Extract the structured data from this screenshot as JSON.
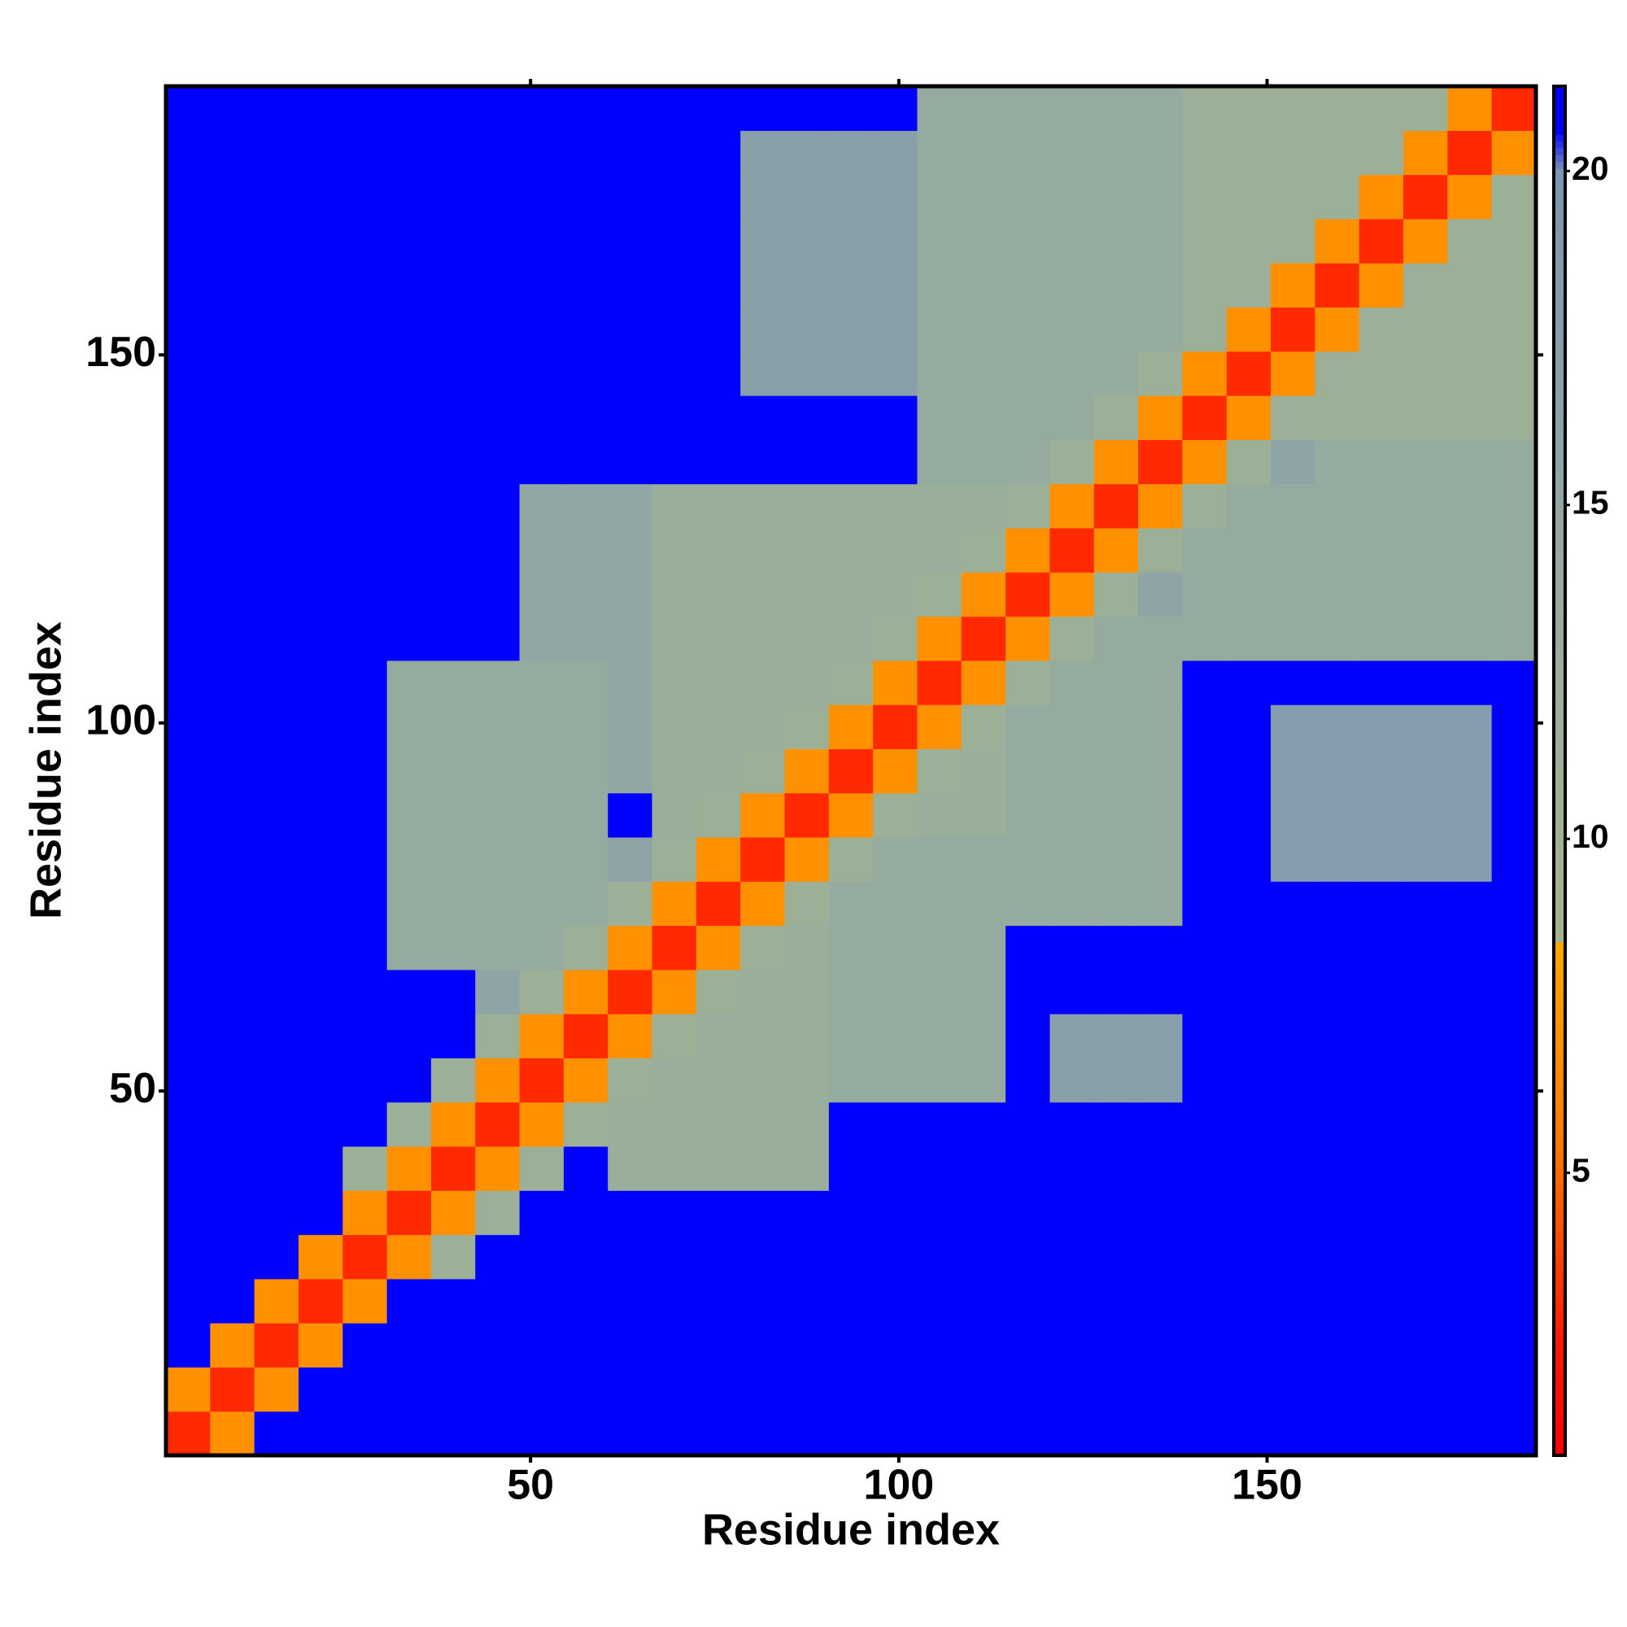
{
  "chart_data": {
    "type": "heatmap",
    "xlabel": "Residue index",
    "ylabel": "Residue index",
    "xlim": [
      0.5,
      186.5
    ],
    "ylim": [
      0.5,
      186.5
    ],
    "xticks": [
      50,
      100,
      150
    ],
    "yticks": [
      50,
      100,
      150
    ],
    "zlim": [
      0.77,
      21.27
    ],
    "colorbar_ticks": [
      5,
      10,
      15,
      20
    ],
    "colorscale": [
      [
        0.77,
        "#ff0000"
      ],
      [
        2.5,
        "#ff1a00"
      ],
      [
        5.5,
        "#ff7a00"
      ],
      [
        8.4,
        "#ffa500"
      ],
      [
        8.5,
        "#a3b58c"
      ],
      [
        13,
        "#9aae9c"
      ],
      [
        20,
        "#7d96b4"
      ],
      [
        20.6,
        "#0000ff"
      ],
      [
        21.27,
        "#0000ff"
      ]
    ],
    "z": [
      [
        3,
        7,
        25,
        25,
        25,
        25,
        25,
        25,
        25,
        25,
        25,
        25,
        25,
        25,
        25,
        25,
        25,
        25,
        25,
        25,
        25,
        25,
        25,
        25,
        25,
        25,
        25,
        25,
        25,
        25,
        25
      ],
      [
        7,
        3,
        7,
        25,
        25,
        25,
        25,
        25,
        25,
        25,
        25,
        25,
        25,
        25,
        25,
        25,
        25,
        25,
        25,
        25,
        25,
        25,
        25,
        25,
        25,
        25,
        25,
        25,
        25,
        25,
        25
      ],
      [
        25,
        7,
        3,
        7,
        25,
        25,
        25,
        25,
        25,
        25,
        25,
        25,
        25,
        25,
        25,
        25,
        25,
        25,
        25,
        25,
        25,
        25,
        25,
        25,
        25,
        25,
        25,
        25,
        25,
        25,
        25
      ],
      [
        25,
        25,
        7,
        3,
        7,
        25,
        25,
        25,
        25,
        25,
        25,
        25,
        25,
        25,
        25,
        25,
        25,
        25,
        25,
        25,
        25,
        25,
        25,
        25,
        25,
        25,
        25,
        25,
        25,
        25,
        25
      ],
      [
        25,
        25,
        25,
        7,
        3,
        7,
        12,
        25,
        25,
        25,
        25,
        25,
        25,
        25,
        25,
        25,
        25,
        25,
        25,
        25,
        25,
        25,
        25,
        25,
        25,
        25,
        25,
        25,
        25,
        25,
        25
      ],
      [
        25,
        25,
        25,
        25,
        7,
        3,
        7,
        12,
        25,
        25,
        25,
        25,
        25,
        25,
        25,
        25,
        25,
        25,
        25,
        25,
        25,
        25,
        25,
        25,
        25,
        25,
        25,
        25,
        25,
        25,
        25
      ],
      [
        25,
        25,
        25,
        25,
        12,
        7,
        3,
        7,
        12,
        25,
        13,
        13,
        13,
        13,
        13,
        25,
        25,
        25,
        25,
        25,
        25,
        25,
        25,
        25,
        25,
        25,
        25,
        25,
        25,
        25,
        25
      ],
      [
        25,
        25,
        25,
        25,
        25,
        12,
        7,
        3,
        7,
        12,
        13,
        13,
        13,
        13,
        13,
        25,
        25,
        25,
        25,
        25,
        25,
        25,
        25,
        25,
        25,
        25,
        25,
        25,
        25,
        25,
        25
      ],
      [
        25,
        25,
        25,
        25,
        25,
        25,
        12,
        7,
        3,
        7,
        12,
        13,
        13,
        13,
        13,
        14,
        14,
        14,
        14,
        25,
        17,
        17,
        17,
        25,
        25,
        25,
        25,
        25,
        25,
        25,
        25
      ],
      [
        25,
        25,
        25,
        25,
        25,
        25,
        25,
        12,
        7,
        3,
        7,
        12,
        13,
        13,
        13,
        14,
        14,
        14,
        14,
        25,
        17,
        17,
        17,
        25,
        25,
        25,
        25,
        25,
        25,
        25,
        25
      ],
      [
        25,
        25,
        25,
        25,
        25,
        25,
        25,
        16,
        12,
        7,
        3,
        7,
        12,
        13,
        13,
        14,
        14,
        14,
        14,
        25,
        25,
        25,
        25,
        25,
        25,
        25,
        25,
        25,
        25,
        25,
        25
      ],
      [
        25,
        25,
        25,
        25,
        25,
        14,
        14,
        14,
        14,
        12,
        7,
        3,
        7,
        12,
        13,
        14,
        14,
        14,
        14,
        25,
        25,
        25,
        25,
        25,
        25,
        25,
        25,
        25,
        25,
        25,
        25
      ],
      [
        25,
        25,
        25,
        25,
        25,
        14,
        14,
        14,
        14,
        14,
        12,
        7,
        3,
        7,
        12,
        14,
        14,
        14,
        14,
        14,
        14,
        14,
        14,
        25,
        25,
        25,
        25,
        25,
        25,
        25,
        25
      ],
      [
        25,
        25,
        25,
        25,
        25,
        14,
        14,
        14,
        14,
        14,
        16,
        12,
        7,
        3,
        7,
        12,
        14,
        14,
        14,
        14,
        14,
        14,
        14,
        25,
        25,
        18,
        18,
        18,
        18,
        18,
        25
      ],
      [
        25,
        25,
        25,
        25,
        25,
        14,
        14,
        14,
        14,
        14,
        25,
        13,
        12,
        7,
        3,
        7,
        12,
        13,
        13,
        14,
        14,
        14,
        14,
        25,
        25,
        18,
        18,
        18,
        18,
        18,
        25
      ],
      [
        25,
        25,
        25,
        25,
        25,
        14,
        14,
        14,
        14,
        14,
        15,
        13,
        13,
        12,
        7,
        3,
        7,
        12,
        13,
        14,
        14,
        14,
        14,
        25,
        25,
        18,
        18,
        18,
        18,
        18,
        25
      ],
      [
        25,
        25,
        25,
        25,
        25,
        14,
        14,
        14,
        14,
        14,
        15,
        13,
        13,
        13,
        12,
        7,
        3,
        7,
        12,
        14,
        14,
        14,
        14,
        25,
        25,
        18,
        18,
        18,
        18,
        18,
        25
      ],
      [
        25,
        25,
        25,
        25,
        25,
        14,
        14,
        14,
        14,
        14,
        15,
        13,
        13,
        13,
        13,
        12,
        7,
        3,
        7,
        12,
        14,
        14,
        14,
        25,
        25,
        25,
        25,
        25,
        25,
        25,
        25
      ],
      [
        25,
        25,
        25,
        25,
        25,
        25,
        25,
        25,
        15,
        15,
        15,
        13,
        13,
        13,
        13,
        13,
        12,
        7,
        3,
        7,
        12,
        14,
        14,
        14,
        14,
        14,
        14,
        14,
        14,
        14,
        14
      ],
      [
        25,
        25,
        25,
        25,
        25,
        25,
        25,
        25,
        15,
        15,
        15,
        13,
        13,
        13,
        13,
        13,
        13,
        12,
        7,
        3,
        7,
        12,
        16,
        14,
        14,
        14,
        14,
        14,
        14,
        14,
        14
      ],
      [
        25,
        25,
        25,
        25,
        25,
        25,
        25,
        25,
        15,
        15,
        15,
        13,
        13,
        13,
        13,
        13,
        13,
        13,
        12,
        7,
        3,
        7,
        12,
        14,
        14,
        14,
        14,
        14,
        14,
        14,
        14
      ],
      [
        25,
        25,
        25,
        25,
        25,
        25,
        25,
        25,
        15,
        15,
        15,
        13,
        13,
        13,
        13,
        13,
        13,
        13,
        13,
        12,
        7,
        3,
        7,
        12,
        14,
        14,
        14,
        14,
        14,
        14,
        14
      ],
      [
        25,
        25,
        25,
        25,
        25,
        25,
        25,
        25,
        25,
        25,
        25,
        25,
        25,
        25,
        25,
        25,
        25,
        14,
        14,
        14,
        12,
        7,
        3,
        7,
        12,
        16,
        14,
        14,
        14,
        14,
        14
      ],
      [
        25,
        25,
        25,
        25,
        25,
        25,
        25,
        25,
        25,
        25,
        25,
        25,
        25,
        25,
        25,
        25,
        25,
        14,
        14,
        14,
        14,
        12,
        7,
        3,
        7,
        12,
        12,
        12,
        12,
        12,
        12
      ],
      [
        25,
        25,
        25,
        25,
        25,
        25,
        25,
        25,
        25,
        25,
        25,
        25,
        25,
        17,
        17,
        17,
        17,
        14,
        14,
        14,
        14,
        14,
        12,
        7,
        3,
        7,
        12,
        12,
        12,
        12,
        12
      ],
      [
        25,
        25,
        25,
        25,
        25,
        25,
        25,
        25,
        25,
        25,
        25,
        25,
        25,
        17,
        17,
        17,
        17,
        14,
        14,
        14,
        14,
        14,
        14,
        12,
        7,
        3,
        7,
        12,
        12,
        12,
        12
      ],
      [
        25,
        25,
        25,
        25,
        25,
        25,
        25,
        25,
        25,
        25,
        25,
        25,
        25,
        17,
        17,
        17,
        17,
        14,
        14,
        14,
        14,
        14,
        14,
        12,
        12,
        7,
        3,
        7,
        12,
        12,
        12
      ],
      [
        25,
        25,
        25,
        25,
        25,
        25,
        25,
        25,
        25,
        25,
        25,
        25,
        25,
        17,
        17,
        17,
        17,
        14,
        14,
        14,
        14,
        14,
        14,
        12,
        12,
        12,
        7,
        3,
        7,
        12,
        12
      ],
      [
        25,
        25,
        25,
        25,
        25,
        25,
        25,
        25,
        25,
        25,
        25,
        25,
        25,
        17,
        17,
        17,
        17,
        14,
        14,
        14,
        14,
        14,
        14,
        12,
        12,
        12,
        12,
        7,
        3,
        7,
        12
      ],
      [
        25,
        25,
        25,
        25,
        25,
        25,
        25,
        25,
        25,
        25,
        25,
        25,
        25,
        17,
        17,
        17,
        17,
        14,
        14,
        14,
        14,
        14,
        14,
        12,
        12,
        12,
        12,
        12,
        7,
        3,
        7
      ],
      [
        25,
        25,
        25,
        25,
        25,
        25,
        25,
        25,
        25,
        25,
        25,
        25,
        25,
        25,
        25,
        25,
        25,
        14,
        14,
        14,
        14,
        14,
        14,
        12,
        12,
        12,
        12,
        12,
        12,
        7,
        3
      ]
    ]
  }
}
